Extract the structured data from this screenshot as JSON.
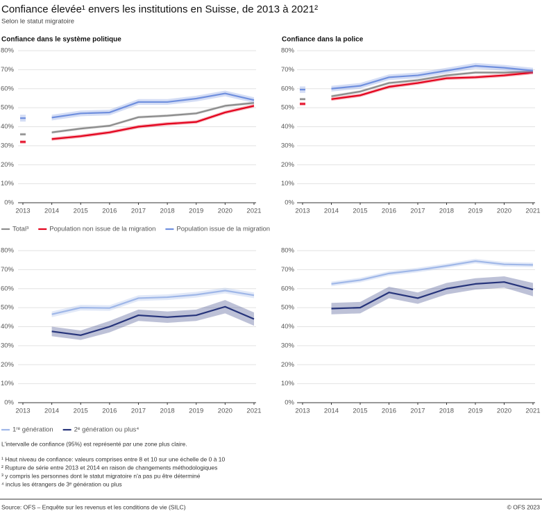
{
  "title": "Confiance élevée¹ envers les institutions en Suisse, de 2013 à 2021²",
  "subtitle": "Selon le statut migratoire",
  "chart_data": [
    {
      "type": "line",
      "title": "Confiance dans le système politique",
      "x": [
        2013,
        2014,
        2015,
        2016,
        2017,
        2018,
        2019,
        2020,
        2021
      ],
      "xlim": [
        2013,
        2021
      ],
      "xticks": [
        2013,
        2014,
        2015,
        2016,
        2017,
        2018,
        2019,
        2020,
        2021
      ],
      "ylim": [
        0,
        80
      ],
      "yticks": [
        {
          "value": 0,
          "label": "0%"
        },
        {
          "value": 10,
          "label": "10%"
        },
        {
          "value": 20,
          "label": "20%"
        },
        {
          "value": 30,
          "label": "30%"
        },
        {
          "value": 40,
          "label": "40%"
        },
        {
          "value": 50,
          "label": "50%"
        },
        {
          "value": 60,
          "label": "60%"
        },
        {
          "value": 70,
          "label": "70%"
        },
        {
          "value": 80,
          "label": "80%"
        }
      ],
      "grid": true,
      "break_after": 2013,
      "series": [
        {
          "name": "Total³",
          "color": "#8c8c8c",
          "values": [
            36,
            37,
            39,
            40.5,
            45,
            45.8,
            47,
            51,
            52.5
          ],
          "lower": [
            35.3,
            36.3,
            38.3,
            39.8,
            44.3,
            45.1,
            46.3,
            50.3,
            51.8
          ],
          "upper": [
            36.7,
            37.7,
            39.7,
            41.2,
            45.7,
            46.5,
            47.7,
            51.7,
            53.2
          ]
        },
        {
          "name": "Population non issue de la migration",
          "color": "#e3001b",
          "values": [
            32,
            33.5,
            35,
            37,
            40,
            41.5,
            42.5,
            47.5,
            51
          ],
          "lower": [
            31.1,
            32.6,
            34.1,
            36.1,
            39.1,
            40.6,
            41.6,
            46.6,
            50.1
          ],
          "upper": [
            32.9,
            34.4,
            35.9,
            37.9,
            40.9,
            42.4,
            43.4,
            48.4,
            51.9
          ]
        },
        {
          "name": "Population issue de la migration",
          "color": "#6f8fde",
          "values": [
            44.5,
            44.8,
            47,
            47.5,
            53,
            53,
            54.8,
            57.5,
            54
          ],
          "lower": [
            42.7,
            43.3,
            45.5,
            46,
            51.5,
            51.5,
            53.3,
            56,
            52.5
          ],
          "upper": [
            46.3,
            46.3,
            48.5,
            49,
            54.5,
            54.5,
            56.3,
            59,
            55.5
          ]
        }
      ]
    },
    {
      "type": "line",
      "title": "Confiance dans la police",
      "x": [
        2013,
        2014,
        2015,
        2016,
        2017,
        2018,
        2019,
        2020,
        2021
      ],
      "xlim": [
        2013,
        2021
      ],
      "xticks": [
        2013,
        2014,
        2015,
        2016,
        2017,
        2018,
        2019,
        2020,
        2021
      ],
      "ylim": [
        0,
        80
      ],
      "yticks": [
        {
          "value": 0,
          "label": "0%"
        },
        {
          "value": 10,
          "label": "10%"
        },
        {
          "value": 20,
          "label": "20%"
        },
        {
          "value": 30,
          "label": "30%"
        },
        {
          "value": 40,
          "label": "40%"
        },
        {
          "value": 50,
          "label": "50%"
        },
        {
          "value": 60,
          "label": "60%"
        },
        {
          "value": 70,
          "label": "70%"
        },
        {
          "value": 80,
          "label": "80%"
        }
      ],
      "grid": true,
      "break_after": 2013,
      "series": [
        {
          "color": "#8c8c8c",
          "values": [
            54.5,
            56,
            58.5,
            63,
            64.5,
            67,
            68.5,
            68.5,
            69
          ],
          "lower": [
            53.8,
            55.3,
            57.8,
            62.3,
            63.8,
            66.3,
            67.8,
            67.8,
            68.3
          ],
          "upper": [
            55.2,
            56.7,
            59.2,
            63.7,
            65.2,
            67.7,
            69.2,
            69.2,
            69.7
          ]
        },
        {
          "color": "#e3001b",
          "values": [
            52,
            54.5,
            56.5,
            61,
            63,
            65.5,
            66,
            67,
            68.5
          ],
          "lower": [
            51.1,
            53.6,
            55.6,
            60.1,
            62.1,
            64.6,
            65.1,
            66.1,
            67.6
          ],
          "upper": [
            52.9,
            55.4,
            57.4,
            61.9,
            63.9,
            66.4,
            66.9,
            67.9,
            69.4
          ]
        },
        {
          "color": "#6f8fde",
          "values": [
            59.5,
            60,
            61.5,
            66,
            67,
            69.5,
            72,
            71,
            69.5
          ],
          "lower": [
            57.8,
            58.5,
            60,
            64.5,
            65.5,
            68,
            70.5,
            69.5,
            68
          ],
          "upper": [
            61.2,
            61.5,
            63,
            67.5,
            68.5,
            71,
            73.5,
            72.5,
            71
          ]
        }
      ]
    },
    {
      "type": "line",
      "x": [
        2013,
        2014,
        2015,
        2016,
        2017,
        2018,
        2019,
        2020,
        2021
      ],
      "xlim": [
        2013,
        2021
      ],
      "xticks": [
        2013,
        2014,
        2015,
        2016,
        2017,
        2018,
        2019,
        2020,
        2021
      ],
      "ylim": [
        0,
        80
      ],
      "yticks": [
        {
          "value": 0,
          "label": "0%"
        },
        {
          "value": 10,
          "label": "10%"
        },
        {
          "value": 20,
          "label": "20%"
        },
        {
          "value": 30,
          "label": "30%"
        },
        {
          "value": 40,
          "label": "40%"
        },
        {
          "value": 50,
          "label": "50%"
        },
        {
          "value": 60,
          "label": "60%"
        },
        {
          "value": 70,
          "label": "70%"
        },
        {
          "value": 80,
          "label": "80%"
        }
      ],
      "grid": true,
      "series": [
        {
          "name": "1ʳᵉ génération",
          "color": "#9fb7e8",
          "values": [
            null,
            46.5,
            50,
            49.8,
            55,
            55.5,
            56.8,
            59,
            56.5
          ],
          "lower": [
            null,
            45,
            48.5,
            48.3,
            53.5,
            54,
            55.3,
            57.5,
            55
          ],
          "upper": [
            null,
            48,
            51.5,
            51.3,
            56.5,
            57,
            58.3,
            60.5,
            58
          ]
        },
        {
          "name": "2ᵉ génération ou plus⁴",
          "color": "#25337a",
          "values": [
            null,
            37.5,
            35.5,
            40,
            46,
            45,
            46,
            50.5,
            44
          ],
          "lower": [
            null,
            35,
            33,
            37,
            43,
            42,
            43,
            47,
            40.5
          ],
          "upper": [
            null,
            40,
            38,
            43,
            49,
            48,
            49,
            54,
            47.5
          ]
        }
      ]
    },
    {
      "type": "line",
      "x": [
        2013,
        2014,
        2015,
        2016,
        2017,
        2018,
        2019,
        2020,
        2021
      ],
      "xlim": [
        2013,
        2021
      ],
      "xticks": [
        2013,
        2014,
        2015,
        2016,
        2017,
        2018,
        2019,
        2020,
        2021
      ],
      "ylim": [
        0,
        80
      ],
      "yticks": [
        {
          "value": 0,
          "label": "0%"
        },
        {
          "value": 10,
          "label": "10%"
        },
        {
          "value": 20,
          "label": "20%"
        },
        {
          "value": 30,
          "label": "30%"
        },
        {
          "value": 40,
          "label": "40%"
        },
        {
          "value": 50,
          "label": "50%"
        },
        {
          "value": 60,
          "label": "60%"
        },
        {
          "value": 70,
          "label": "70%"
        },
        {
          "value": 80,
          "label": "80%"
        }
      ],
      "grid": true,
      "series": [
        {
          "color": "#9fb7e8",
          "values": [
            null,
            62.5,
            64.5,
            68,
            69.8,
            72,
            74.5,
            72.8,
            72.5
          ],
          "lower": [
            null,
            61.3,
            63.3,
            66.8,
            68.6,
            70.8,
            73.3,
            71.6,
            71.3
          ],
          "upper": [
            null,
            63.7,
            65.7,
            69.2,
            71,
            73.2,
            75.7,
            74,
            73.7
          ]
        },
        {
          "color": "#25337a",
          "values": [
            null,
            49.5,
            50,
            58,
            55,
            60,
            62.5,
            63.5,
            59.5
          ],
          "lower": [
            null,
            46.5,
            47,
            55,
            52,
            57,
            59.5,
            60.5,
            56
          ],
          "upper": [
            null,
            52.5,
            53,
            61,
            58,
            63,
            65.5,
            66.5,
            63
          ]
        }
      ]
    }
  ],
  "note": "L'intervalle de confiance (95%) est représenté par une zone plus claire.",
  "footnotes": [
    "¹ Haut niveau de confiance: valeurs comprises entre 8 et 10 sur une échelle de 0 à 10",
    "² Rupture de série entre 2013 et 2014 en raison de changements méthodologiques",
    "³ y compris les personnes dont le statut migratoire n'a pas pu être déterminé",
    "⁴ inclus les étrangers de 3ᵉ génération ou plus"
  ],
  "source": "Source: OFS – Enquête sur les revenus et les conditions de vie (SILC)",
  "copyright": "© OFS 2023"
}
